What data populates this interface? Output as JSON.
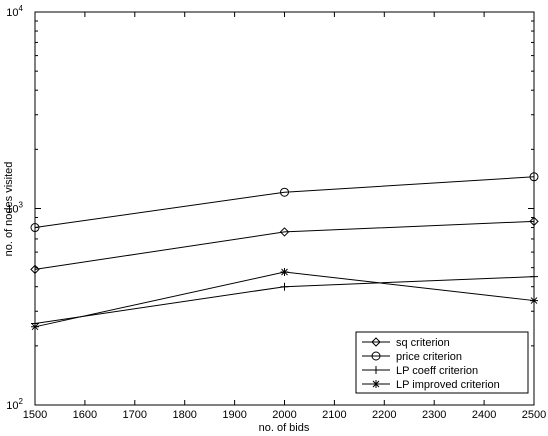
{
  "chart_data": {
    "type": "line",
    "title": "",
    "xlabel": "no. of bids",
    "ylabel": "no. of nodes visited",
    "x": [
      1500,
      2000,
      2500
    ],
    "xlim": [
      1500,
      2500
    ],
    "ylim": [
      100,
      10000
    ],
    "yscale": "log",
    "grid": false,
    "legend_position": "bottom-right",
    "x_ticks": [
      "1500",
      "1600",
      "1700",
      "1800",
      "1900",
      "2000",
      "2100",
      "2200",
      "2300",
      "2400",
      "2500"
    ],
    "y_ticks": [
      {
        "value": 100,
        "base": "10",
        "exp": "2"
      },
      {
        "value": 1000,
        "base": "10",
        "exp": "3"
      },
      {
        "value": 10000,
        "base": "10",
        "exp": "4"
      }
    ],
    "series": [
      {
        "name": "sq criterion",
        "marker": "diamond",
        "values": [
          490,
          760,
          860
        ]
      },
      {
        "name": "price criterion",
        "marker": "circle",
        "values": [
          800,
          1210,
          1450
        ]
      },
      {
        "name": "LP coeff criterion",
        "marker": "plus",
        "values": [
          260,
          400,
          450
        ]
      },
      {
        "name": "LP improved criterion",
        "marker": "asterisk",
        "values": [
          250,
          475,
          340
        ]
      }
    ],
    "line_color": "#000000"
  }
}
